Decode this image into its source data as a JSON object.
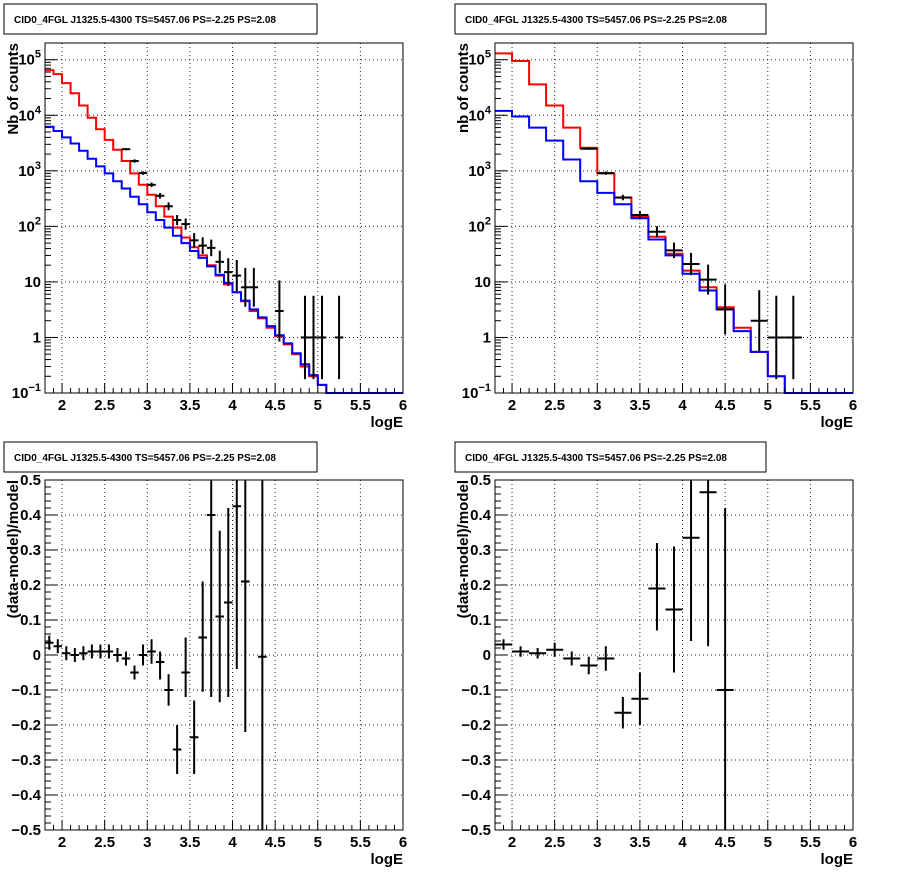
{
  "chart_data": [
    {
      "type": "step-histogram",
      "title": "CID0_4FGL J1325.5-4300 TS=5457.06 PS=-2.25 PS=2.08",
      "xlabel": "logE",
      "ylabel": "Nb of counts",
      "xlim": [
        1.8,
        6.0
      ],
      "ylim": [
        0.1,
        200000
      ],
      "yscale": "log",
      "grid": true,
      "xticks": [
        "2",
        "2.5",
        "3",
        "3.5",
        "4",
        "4.5",
        "5",
        "5.5",
        "6"
      ],
      "yticks": [
        "10^-1",
        "1",
        "10",
        "10^2",
        "10^3",
        "10^4",
        "10^5"
      ],
      "bin_edges": [
        1.8,
        1.9,
        2.0,
        2.1,
        2.2,
        2.3,
        2.4,
        2.5,
        2.6,
        2.7,
        2.8,
        2.9,
        3.0,
        3.1,
        3.2,
        3.3,
        3.4,
        3.5,
        3.6,
        3.7,
        3.8,
        3.9,
        4.0,
        4.1,
        4.2,
        4.3,
        4.4,
        4.5,
        4.6,
        4.7,
        4.8,
        4.9,
        5.0,
        5.1,
        5.2,
        5.3,
        5.4,
        5.5,
        5.6,
        5.7,
        5.8,
        5.9,
        6.0
      ],
      "series": [
        {
          "color": "#ff0000",
          "values": [
            65000,
            55000,
            38000,
            25000,
            15000,
            9000,
            5600,
            3600,
            2400,
            1500,
            900,
            560,
            370,
            230,
            150,
            95,
            63,
            42,
            30,
            20,
            13,
            9,
            6.5,
            4.5,
            3.0,
            2.2,
            1.5,
            1.05,
            0.75,
            0.5,
            0.3,
            0.2,
            0.14,
            0.1,
            0.1,
            0.1,
            0.1,
            0.1,
            0.1,
            0.1,
            0.1,
            0.1
          ]
        },
        {
          "color": "#0000ff",
          "values": [
            6200,
            5200,
            4000,
            3100,
            2300,
            1650,
            1200,
            900,
            650,
            480,
            340,
            250,
            180,
            130,
            95,
            68,
            50,
            36,
            27,
            19,
            13.5,
            9.5,
            6.5,
            4.6,
            3.2,
            2.3,
            1.6,
            1.1,
            0.78,
            0.52,
            0.33,
            0.21,
            0.14,
            0.1,
            0.1,
            0.1,
            0.1,
            0.1,
            0.1,
            0.1,
            0.1,
            0.1
          ]
        }
      ],
      "points": [
        {
          "x": 2.75,
          "y": 2450,
          "xerr": 0.05,
          "yerr": 0.02
        },
        {
          "x": 2.85,
          "y": 1500,
          "xerr": 0.05,
          "yerr": 0.03
        },
        {
          "x": 2.95,
          "y": 910,
          "xerr": 0.05,
          "yerr": 0.03
        },
        {
          "x": 3.05,
          "y": 560,
          "xerr": 0.05,
          "yerr": 0.04
        },
        {
          "x": 3.15,
          "y": 355,
          "xerr": 0.05,
          "yerr": 0.05
        },
        {
          "x": 3.25,
          "y": 230,
          "xerr": 0.05,
          "yerr": 0.07
        },
        {
          "x": 3.35,
          "y": 130,
          "xerr": 0.05,
          "yerr": 0.09
        },
        {
          "x": 3.45,
          "y": 110,
          "xerr": 0.05,
          "yerr": 0.1
        },
        {
          "x": 3.55,
          "y": 56,
          "xerr": 0.05,
          "yerr": 0.13
        },
        {
          "x": 3.65,
          "y": 45,
          "xerr": 0.05,
          "yerr": 0.15
        },
        {
          "x": 3.75,
          "y": 41,
          "xerr": 0.05,
          "yerr": 0.15
        },
        {
          "x": 3.85,
          "y": 23,
          "xerr": 0.05,
          "yerr": 0.2
        },
        {
          "x": 3.95,
          "y": 15,
          "xerr": 0.05,
          "yerr": 0.25
        },
        {
          "x": 4.05,
          "y": 13,
          "xerr": 0.05,
          "yerr": 0.28
        },
        {
          "x": 4.15,
          "y": 8,
          "xerr": 0.05,
          "yerr": 0.35
        },
        {
          "x": 4.25,
          "y": 8,
          "xerr": 0.05,
          "yerr": 0.35
        },
        {
          "x": 4.55,
          "y": 3,
          "xerr": 0.05,
          "yerr": 0.55
        },
        {
          "x": 4.85,
          "y": 1,
          "xerr": 0.05,
          "yerr": 0.75
        },
        {
          "x": 4.95,
          "y": 1,
          "xerr": 0.05,
          "yerr": 0.75
        },
        {
          "x": 5.05,
          "y": 1,
          "xerr": 0.05,
          "yerr": 0.75
        },
        {
          "x": 5.25,
          "y": 1,
          "xerr": 0.05,
          "yerr": 0.75
        }
      ]
    },
    {
      "type": "step-histogram",
      "title": "CID0_4FGL J1325.5-4300 TS=5457.06 PS=-2.25 PS=2.08",
      "xlabel": "logE",
      "ylabel": "nb of counts",
      "xlim": [
        1.8,
        6.0
      ],
      "ylim": [
        0.1,
        200000
      ],
      "yscale": "log",
      "grid": true,
      "xticks": [
        "2",
        "2.5",
        "3",
        "3.5",
        "4",
        "4.5",
        "5",
        "5.5",
        "6"
      ],
      "yticks": [
        "10^-1",
        "1",
        "10",
        "10^2",
        "10^3",
        "10^4",
        "10^5"
      ],
      "bin_edges": [
        1.8,
        2.0,
        2.2,
        2.4,
        2.6,
        2.8,
        3.0,
        3.2,
        3.4,
        3.6,
        3.8,
        4.0,
        4.2,
        4.4,
        4.6,
        4.8,
        5.0,
        5.2,
        5.4,
        5.6,
        5.8,
        6.0
      ],
      "series": [
        {
          "color": "#ff0000",
          "values": [
            130000,
            95000,
            36000,
            15000,
            6000,
            2600,
            900,
            330,
            150,
            65,
            32,
            16,
            8,
            3.5,
            1.5,
            0.55,
            0.2,
            0.1,
            0.1,
            0.1,
            0.1
          ]
        },
        {
          "color": "#0000ff",
          "values": [
            12000,
            9500,
            6000,
            3500,
            1600,
            650,
            400,
            250,
            140,
            58,
            30,
            14,
            7,
            3.2,
            1.3,
            0.55,
            0.2,
            0.1,
            0.1,
            0.1,
            0.1
          ]
        }
      ],
      "points": [
        {
          "x": 2.9,
          "y": 2500,
          "xerr": 0.1,
          "yerr": 0.02
        },
        {
          "x": 3.1,
          "y": 910,
          "xerr": 0.1,
          "yerr": 0.03
        },
        {
          "x": 3.3,
          "y": 330,
          "xerr": 0.1,
          "yerr": 0.05
        },
        {
          "x": 3.5,
          "y": 160,
          "xerr": 0.1,
          "yerr": 0.07
        },
        {
          "x": 3.7,
          "y": 80,
          "xerr": 0.1,
          "yerr": 0.1
        },
        {
          "x": 3.9,
          "y": 37,
          "xerr": 0.1,
          "yerr": 0.14
        },
        {
          "x": 4.1,
          "y": 21,
          "xerr": 0.1,
          "yerr": 0.2
        },
        {
          "x": 4.3,
          "y": 11,
          "xerr": 0.1,
          "yerr": 0.27
        },
        {
          "x": 4.5,
          "y": 3.2,
          "xerr": 0.1,
          "yerr": 0.45
        },
        {
          "x": 4.9,
          "y": 2,
          "xerr": 0.1,
          "yerr": 0.55
        },
        {
          "x": 5.1,
          "y": 1,
          "xerr": 0.1,
          "yerr": 0.75
        },
        {
          "x": 5.3,
          "y": 1,
          "xerr": 0.1,
          "yerr": 0.75
        }
      ]
    },
    {
      "type": "scatter",
      "title": "CID0_4FGL J1325.5-4300 TS=5457.06 PS=-2.25 PS=2.08",
      "xlabel": "logE",
      "ylabel": "(data-model)/model",
      "xlim": [
        1.8,
        6.0
      ],
      "ylim": [
        -0.5,
        0.5
      ],
      "grid": true,
      "xticks": [
        "2",
        "2.5",
        "3",
        "3.5",
        "4",
        "4.5",
        "5",
        "5.5",
        "6"
      ],
      "yticks": [
        "−0.5",
        "−0.4",
        "−0.3",
        "−0.2",
        "−0.1",
        "0",
        "0.1",
        "0.2",
        "0.3",
        "0.4",
        "0.5"
      ],
      "points": [
        {
          "x": 1.85,
          "y": 0.035,
          "xerr": 0.05,
          "ylo": 0.015,
          "yhi": 0.055
        },
        {
          "x": 1.95,
          "y": 0.025,
          "xerr": 0.05,
          "ylo": 0.005,
          "yhi": 0.045
        },
        {
          "x": 2.05,
          "y": 0.005,
          "xerr": 0.05,
          "ylo": -0.015,
          "yhi": 0.025
        },
        {
          "x": 2.15,
          "y": 0.0,
          "xerr": 0.05,
          "ylo": -0.02,
          "yhi": 0.02
        },
        {
          "x": 2.25,
          "y": 0.005,
          "xerr": 0.05,
          "ylo": -0.015,
          "yhi": 0.025
        },
        {
          "x": 2.35,
          "y": 0.01,
          "xerr": 0.05,
          "ylo": -0.01,
          "yhi": 0.03
        },
        {
          "x": 2.45,
          "y": 0.01,
          "xerr": 0.05,
          "ylo": -0.01,
          "yhi": 0.03
        },
        {
          "x": 2.55,
          "y": 0.01,
          "xerr": 0.05,
          "ylo": -0.01,
          "yhi": 0.03
        },
        {
          "x": 2.65,
          "y": 0.0,
          "xerr": 0.05,
          "ylo": -0.02,
          "yhi": 0.02
        },
        {
          "x": 2.75,
          "y": -0.01,
          "xerr": 0.05,
          "ylo": -0.03,
          "yhi": 0.01
        },
        {
          "x": 2.85,
          "y": -0.05,
          "xerr": 0.05,
          "ylo": -0.07,
          "yhi": -0.03
        },
        {
          "x": 2.95,
          "y": 0.0,
          "xerr": 0.05,
          "ylo": -0.03,
          "yhi": 0.03
        },
        {
          "x": 3.05,
          "y": 0.01,
          "xerr": 0.05,
          "ylo": -0.025,
          "yhi": 0.045
        },
        {
          "x": 3.15,
          "y": -0.02,
          "xerr": 0.05,
          "ylo": -0.07,
          "yhi": 0.01
        },
        {
          "x": 3.25,
          "y": -0.1,
          "xerr": 0.05,
          "ylo": -0.145,
          "yhi": -0.055
        },
        {
          "x": 3.35,
          "y": -0.27,
          "xerr": 0.05,
          "ylo": -0.34,
          "yhi": -0.2
        },
        {
          "x": 3.45,
          "y": -0.05,
          "xerr": 0.05,
          "ylo": -0.12,
          "yhi": 0.05
        },
        {
          "x": 3.55,
          "y": -0.235,
          "xerr": 0.05,
          "ylo": -0.34,
          "yhi": -0.13
        },
        {
          "x": 3.65,
          "y": 0.05,
          "xerr": 0.05,
          "ylo": -0.105,
          "yhi": 0.21
        },
        {
          "x": 3.75,
          "y": 0.4,
          "xerr": 0.05,
          "ylo": -0.12,
          "yhi": 0.52
        },
        {
          "x": 3.85,
          "y": 0.11,
          "xerr": 0.05,
          "ylo": -0.135,
          "yhi": 0.355
        },
        {
          "x": 3.95,
          "y": 0.15,
          "xerr": 0.05,
          "ylo": -0.12,
          "yhi": 0.42
        },
        {
          "x": 4.05,
          "y": 0.425,
          "xerr": 0.05,
          "ylo": -0.04,
          "yhi": 0.52
        },
        {
          "x": 4.15,
          "y": 0.21,
          "xerr": 0.05,
          "ylo": -0.22,
          "yhi": 0.52
        },
        {
          "x": 4.35,
          "y": -0.005,
          "xerr": 0.05,
          "ylo": -0.52,
          "yhi": 0.52
        }
      ]
    },
    {
      "type": "scatter",
      "title": "CID0_4FGL J1325.5-4300 TS=5457.06 PS=-2.25 PS=2.08",
      "xlabel": "logE",
      "ylabel": "(data-model)/model",
      "xlim": [
        1.8,
        6.0
      ],
      "ylim": [
        -0.5,
        0.5
      ],
      "grid": true,
      "xticks": [
        "2",
        "2.5",
        "3",
        "3.5",
        "4",
        "4.5",
        "5",
        "5.5",
        "6"
      ],
      "yticks": [
        "−0.5",
        "−0.4",
        "−0.3",
        "−0.2",
        "−0.1",
        "0",
        "0.1",
        "0.2",
        "0.3",
        "0.4",
        "0.5"
      ],
      "points": [
        {
          "x": 1.9,
          "y": 0.03,
          "xerr": 0.1,
          "ylo": 0.015,
          "yhi": 0.045
        },
        {
          "x": 2.1,
          "y": 0.01,
          "xerr": 0.1,
          "ylo": -0.005,
          "yhi": 0.025
        },
        {
          "x": 2.3,
          "y": 0.005,
          "xerr": 0.1,
          "ylo": -0.01,
          "yhi": 0.02
        },
        {
          "x": 2.5,
          "y": 0.015,
          "xerr": 0.1,
          "ylo": -0.005,
          "yhi": 0.035
        },
        {
          "x": 2.7,
          "y": -0.01,
          "xerr": 0.1,
          "ylo": -0.03,
          "yhi": 0.01
        },
        {
          "x": 2.9,
          "y": -0.03,
          "xerr": 0.1,
          "ylo": -0.055,
          "yhi": -0.005
        },
        {
          "x": 3.1,
          "y": -0.01,
          "xerr": 0.1,
          "ylo": -0.045,
          "yhi": 0.025
        },
        {
          "x": 3.3,
          "y": -0.165,
          "xerr": 0.1,
          "ylo": -0.21,
          "yhi": -0.12
        },
        {
          "x": 3.5,
          "y": -0.125,
          "xerr": 0.1,
          "ylo": -0.2,
          "yhi": -0.05
        },
        {
          "x": 3.7,
          "y": 0.19,
          "xerr": 0.1,
          "ylo": 0.07,
          "yhi": 0.32
        },
        {
          "x": 3.9,
          "y": 0.13,
          "xerr": 0.1,
          "ylo": -0.05,
          "yhi": 0.31
        },
        {
          "x": 4.1,
          "y": 0.335,
          "xerr": 0.1,
          "ylo": 0.04,
          "yhi": 0.52
        },
        {
          "x": 4.3,
          "y": 0.465,
          "xerr": 0.1,
          "ylo": 0.025,
          "yhi": 0.52
        },
        {
          "x": 4.5,
          "y": -0.1,
          "xerr": 0.1,
          "ylo": -0.52,
          "yhi": 0.42
        }
      ]
    }
  ]
}
